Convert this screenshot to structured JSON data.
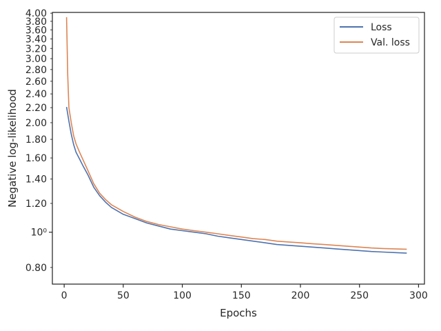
{
  "chart_data": {
    "type": "line",
    "title": "",
    "xlabel": "Epochs",
    "ylabel": "Negative log-likelihood",
    "xlim": [
      -10,
      305
    ],
    "ylim": [
      0.72,
      4.02
    ],
    "yscale": "log",
    "grid": false,
    "legend_position": "top-right",
    "x_ticks": [
      0,
      50,
      100,
      150,
      200,
      250,
      300
    ],
    "x_tick_labels": [
      "0",
      "50",
      "100",
      "150",
      "200",
      "250",
      "300"
    ],
    "y_ticks": [
      0.8,
      1.0,
      1.2,
      1.4,
      1.6,
      1.8,
      2.0,
      2.2,
      2.4,
      2.6,
      2.8,
      3.0,
      3.2,
      3.4,
      3.6,
      3.8,
      4.0
    ],
    "y_tick_labels": [
      "0.80",
      "10⁰",
      "1.20",
      "1.40",
      "1.60",
      "1.80",
      "2.00",
      "2.20",
      "2.40",
      "2.60",
      "2.80",
      "3.00",
      "3.20",
      "3.40",
      "3.60",
      "3.80",
      "4.00"
    ],
    "series": [
      {
        "name": "Loss",
        "color": "#4c72b0",
        "x": [
          2,
          4,
          6,
          8,
          10,
          13,
          16,
          20,
          25,
          30,
          35,
          40,
          50,
          60,
          70,
          80,
          90,
          100,
          110,
          120,
          130,
          140,
          150,
          160,
          170,
          180,
          190,
          200,
          210,
          220,
          230,
          240,
          250,
          260,
          270,
          280,
          290
        ],
        "values": [
          2.21,
          2.02,
          1.86,
          1.74,
          1.66,
          1.59,
          1.52,
          1.44,
          1.33,
          1.26,
          1.21,
          1.17,
          1.12,
          1.09,
          1.06,
          1.04,
          1.02,
          1.01,
          1.0,
          0.99,
          0.975,
          0.965,
          0.955,
          0.945,
          0.935,
          0.925,
          0.92,
          0.915,
          0.91,
          0.905,
          0.9,
          0.895,
          0.89,
          0.885,
          0.882,
          0.879,
          0.876
        ]
      },
      {
        "name": "Val. loss",
        "color": "#dd8452",
        "x": [
          2,
          3,
          4,
          6,
          8,
          10,
          13,
          16,
          20,
          25,
          30,
          35,
          40,
          50,
          60,
          70,
          80,
          90,
          100,
          110,
          120,
          130,
          140,
          150,
          160,
          170,
          180,
          190,
          200,
          210,
          220,
          230,
          240,
          250,
          260,
          270,
          280,
          290
        ],
        "values": [
          3.9,
          2.7,
          2.2,
          2.0,
          1.84,
          1.75,
          1.66,
          1.58,
          1.48,
          1.36,
          1.28,
          1.23,
          1.19,
          1.14,
          1.1,
          1.07,
          1.05,
          1.035,
          1.02,
          1.01,
          1.0,
          0.99,
          0.98,
          0.97,
          0.96,
          0.955,
          0.945,
          0.94,
          0.935,
          0.93,
          0.925,
          0.92,
          0.915,
          0.91,
          0.905,
          0.902,
          0.9,
          0.898
        ]
      }
    ]
  }
}
